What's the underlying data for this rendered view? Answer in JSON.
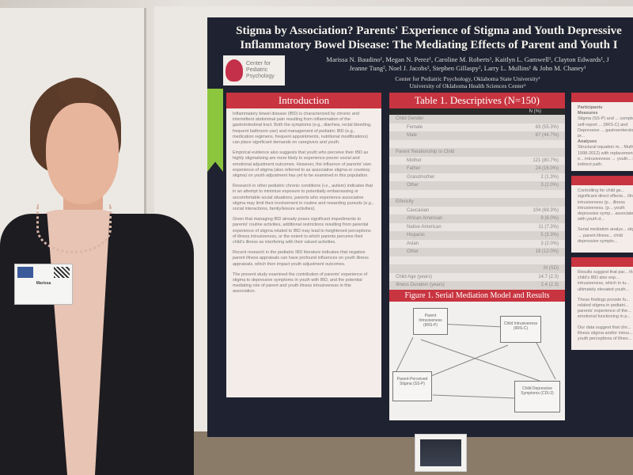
{
  "poster": {
    "title_line1": "Stigma by Association? Parents' Experience of Stigma and Youth Depressive",
    "title_line2": "Inflammatory Bowel Disease: The Mediating Effects of Parent and Youth I",
    "authors_line1": "Marissa N. Baudino¹, Megan N. Perez¹, Caroline M. Roberts¹, Kaitlyn L. Gamwell¹, Clayton Edwards¹, J",
    "authors_line2": "Jeanne Tung², Noel J. Jacobs², Stephen Gillaspy², Larry L. Mullins¹ & John M. Chaney¹",
    "affil_line1": "Center for Pediatric Psychology, Oklahoma State University¹",
    "affil_line2": "University of Oklahoma Health Sciences Center²",
    "logo_text": "Center for Pediatric Psychology",
    "intro": {
      "heading": "Introduction",
      "paragraphs": [
        "Inflammatory bowel disease (IBD) is characterized by chronic and intermittent abdominal pain resulting from inflammation of the gastrointestinal tract. Both the symptoms (e.g., diarrhea, rectal bleeding, frequent bathroom use) and management of pediatric IBD (e.g., medication regimens, frequent appointments, nutritional modifications) can place significant demands on caregivers and youth.",
        "Empirical evidence also suggests that youth who perceive their IBD as highly stigmatizing are more likely to experience poorer social and emotional adjustment outcomes. However, the influence of parents' own experience of stigma (also referred to as associative stigma or courtesy stigma) on youth adjustment has yet to be examined in this population.",
        "Research in other pediatric chronic conditions (i.e., autism) indicates that in an attempt to minimize exposure to potentially embarrassing or uncomfortable social situations, parents who experience associative stigma may limit their involvement in routine and rewarding pursuits (e.g., social interactions, family/leisure activities).",
        "Given that managing IBD already poses significant impediments to parents' routine activities, additional restrictions resulting from parental experience of stigma related to IBD may lead to heightened perceptions of illness intrusiveness, or the extent to which parents perceive their child's illness as interfering with their valued activities.",
        "Recent research in the pediatric IBD literature indicates that negative parent illness appraisals can have profound influences on youth illness appraisals, which then impact youth adjustment outcomes.",
        "The present study examined the contribution of parents' experience of stigma to depressive symptoms in youth with IBD, and the potential mediating role of parent and youth illness intrusiveness in this association."
      ]
    },
    "table": {
      "heading": "Table 1. Descriptives (N=150)",
      "col_header": "N    (%)",
      "rows": [
        {
          "label": "Child Gender",
          "value": "",
          "indent": false
        },
        {
          "label": "Female",
          "value": "83 (55.3%)",
          "indent": true
        },
        {
          "label": "Male",
          "value": "67 (44.7%)",
          "indent": true
        },
        {
          "label": "",
          "value": "",
          "indent": false
        },
        {
          "label": "Parent Relationship to Child",
          "value": "",
          "indent": false
        },
        {
          "label": "Mother",
          "value": "121 (80.7%)",
          "indent": true
        },
        {
          "label": "Father",
          "value": "24 (16.0%)",
          "indent": true
        },
        {
          "label": "Grandmother",
          "value": "2 (1.3%)",
          "indent": true
        },
        {
          "label": "Other",
          "value": "3 (2.0%)",
          "indent": true
        },
        {
          "label": "",
          "value": "",
          "indent": false
        },
        {
          "label": "Ethnicity",
          "value": "",
          "indent": false
        },
        {
          "label": "Caucasian",
          "value": "104 (69.3%)",
          "indent": true
        },
        {
          "label": "African American",
          "value": "9 (6.0%)",
          "indent": true
        },
        {
          "label": "Native American",
          "value": "11 (7.3%)",
          "indent": true
        },
        {
          "label": "Hispanic",
          "value": "5 (3.3%)",
          "indent": true
        },
        {
          "label": "Asian",
          "value": "3 (2.0%)",
          "indent": true
        },
        {
          "label": "Other",
          "value": "18 (12.0%)",
          "indent": true
        },
        {
          "label": "",
          "value": "",
          "indent": false
        },
        {
          "label": "",
          "value": "M     (SD)",
          "indent": false
        },
        {
          "label": "Child Age (years)",
          "value": "14.7   (2.3)",
          "indent": false
        },
        {
          "label": "Illness Duration (years)",
          "value": "2.4   (2.3)",
          "indent": false
        }
      ]
    },
    "figure": {
      "heading": "Figure 1. Serial Mediation Model and Results",
      "boxes": {
        "parent_intrusiveness": "Parent Intrusiveness (IIRS-P)",
        "child_intrusiveness": "Child Intrusiveness (IIRS-C)",
        "stigma": "Parent-Perceived Stigma (SS-P)",
        "depression": "Child Depressive Symptoms (CDI-2)"
      }
    },
    "right": {
      "participants_label": "Participants",
      "measures_label": "Measures",
      "analyses_label": "Analyses",
      "measures_text": "Stigma (SS-P) and ... completed self-report ... (IIRS-C) and Depressive ... gastroenterologist pr...",
      "analyses_text": "Structural equation m... Muthén, 1998-2012) with replacement to e... intrusiveness → youth... serial indirect path.",
      "results_text": "Controlling for child ge... significant direct effects... illness intrusiveness (p... illness intrusiveness. (p... youth depressive symp... associated with youth d...",
      "results_text2": "Serial mediation analys... stigma → parent illness... child depressive sympto...",
      "disc_text": "Results suggest that par... their child's IBD also exp... intrusiveness, which in tu... ultimately elevated youth...",
      "disc_text2": "These findings provide fu... related stigma in pediatri... parents' experience of the... emotional functioning in p...",
      "disc_text3": "Our data suggest that clin... illness stigma and/or intrus... youth perceptions of illnes..."
    }
  },
  "badge": {
    "name": "Marissa"
  },
  "colors": {
    "poster_bg": "#1f2230",
    "accent_red": "#c8343f",
    "ribbon": "#8cc63f"
  }
}
